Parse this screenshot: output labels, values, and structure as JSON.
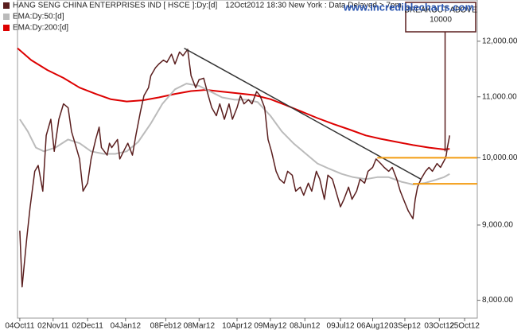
{
  "chart_data": {
    "type": "line",
    "title": "HANG SENG CHINA ENTERPRISES IND [ HSCE ]:Dy:[d]",
    "subtitle": "12Oct2012 18:30 New York : Data Delayed > 7pm",
    "watermark": "www.incrediblecharts.com",
    "log_scale": true,
    "grid": false,
    "legend": "top-left",
    "xlim": [
      "2011-10-02",
      "2012-11-05"
    ],
    "xticks": [
      {
        "value": "2011-10-04",
        "label": "04Oct11"
      },
      {
        "value": "2011-11-02",
        "label": "02Nov11"
      },
      {
        "value": "2011-12-02",
        "label": "02Dec11"
      },
      {
        "value": "2012-01-04",
        "label": "04Jan12"
      },
      {
        "value": "2012-02-08",
        "label": "08Feb12"
      },
      {
        "value": "2012-03-08",
        "label": "08Mar12"
      },
      {
        "value": "2012-04-10",
        "label": "10Apr12"
      },
      {
        "value": "2012-05-09",
        "label": "09May12"
      },
      {
        "value": "2012-06-08",
        "label": "08Jun12"
      },
      {
        "value": "2012-07-09",
        "label": "09Jul12"
      },
      {
        "value": "2012-08-06",
        "label": "06Aug12"
      },
      {
        "value": "2012-09-03",
        "label": "03Sep12"
      },
      {
        "value": "2012-10-03",
        "label": "03Oct12"
      },
      {
        "value": "2012-10-25",
        "label": "25Oct12"
      }
    ],
    "ylim": [
      7780,
      12800
    ],
    "yticks": [
      {
        "value": 8000,
        "label": "8,000.00"
      },
      {
        "value": 9000,
        "label": "9,000.00"
      },
      {
        "value": 10000,
        "label": "10,000.00"
      },
      {
        "value": 11000,
        "label": "11,000.00"
      },
      {
        "value": 12000,
        "label": "12,000.00"
      }
    ],
    "series": [
      {
        "name": "HANG SENG CHINA ENTERPRISES IND [ HSCE ]:Dy:[d]",
        "color": "#5a1e1e",
        "width": 1.5,
        "x": [
          "2011-10-04",
          "2011-10-06",
          "2011-10-10",
          "2011-10-13",
          "2011-10-17",
          "2011-10-20",
          "2011-10-24",
          "2011-10-27",
          "2011-10-31",
          "2011-11-03",
          "2011-11-07",
          "2011-11-11",
          "2011-11-15",
          "2011-11-18",
          "2011-11-21",
          "2011-11-25",
          "2011-11-28",
          "2011-12-02",
          "2011-12-05",
          "2011-12-09",
          "2011-12-12",
          "2011-12-14",
          "2011-12-19",
          "2011-12-21",
          "2011-12-23",
          "2011-12-28",
          "2011-12-30",
          "2012-01-04",
          "2012-01-06",
          "2012-01-10",
          "2012-01-13",
          "2012-01-17",
          "2012-01-20",
          "2012-01-24",
          "2012-01-26",
          "2012-01-30",
          "2012-02-02",
          "2012-02-06",
          "2012-02-09",
          "2012-02-13",
          "2012-02-16",
          "2012-02-20",
          "2012-02-23",
          "2012-02-27",
          "2012-03-01",
          "2012-03-05",
          "2012-03-08",
          "2012-03-12",
          "2012-03-16",
          "2012-03-19",
          "2012-03-23",
          "2012-03-26",
          "2012-03-30",
          "2012-04-03",
          "2012-04-06",
          "2012-04-10",
          "2012-04-13",
          "2012-04-16",
          "2012-04-20",
          "2012-04-23",
          "2012-04-27",
          "2012-04-30",
          "2012-05-04",
          "2012-05-07",
          "2012-05-10",
          "2012-05-14",
          "2012-05-17",
          "2012-05-21",
          "2012-05-24",
          "2012-05-28",
          "2012-05-31",
          "2012-06-04",
          "2012-06-07",
          "2012-06-11",
          "2012-06-14",
          "2012-06-18",
          "2012-06-21",
          "2012-06-25",
          "2012-06-28",
          "2012-07-02",
          "2012-07-05",
          "2012-07-09",
          "2012-07-12",
          "2012-07-16",
          "2012-07-19",
          "2012-07-23",
          "2012-07-26",
          "2012-07-30",
          "2012-08-02",
          "2012-08-06",
          "2012-08-09",
          "2012-08-13",
          "2012-08-16",
          "2012-08-20",
          "2012-08-23",
          "2012-08-27",
          "2012-08-30",
          "2012-09-03",
          "2012-09-06",
          "2012-09-10",
          "2012-09-12",
          "2012-09-14",
          "2012-09-17",
          "2012-09-21",
          "2012-09-24",
          "2012-09-27",
          "2012-10-01",
          "2012-10-04",
          "2012-10-08",
          "2012-10-09",
          "2012-10-10",
          "2012-10-12"
        ],
        "values": [
          8920,
          8170,
          8810,
          9260,
          9790,
          9880,
          9490,
          10355,
          10620,
          10100,
          10620,
          10880,
          10815,
          10420,
          10230,
          9980,
          9490,
          9610,
          9980,
          10290,
          10490,
          10160,
          10040,
          10230,
          10160,
          10290,
          9980,
          10160,
          10230,
          10040,
          10355,
          10750,
          11020,
          11160,
          11370,
          11510,
          11580,
          11650,
          11610,
          11760,
          11580,
          11800,
          11730,
          11850,
          11370,
          11160,
          11300,
          11325,
          11020,
          10815,
          10680,
          10880,
          10620,
          10880,
          10620,
          10815,
          11020,
          10880,
          10950,
          10880,
          11090,
          11020,
          10815,
          10290,
          10100,
          9790,
          9670,
          9610,
          9790,
          9730,
          9490,
          9550,
          9430,
          9610,
          9490,
          9790,
          9670,
          9370,
          9730,
          9670,
          9490,
          9260,
          9370,
          9550,
          9370,
          9490,
          9670,
          9610,
          9790,
          9850,
          9980,
          9910,
          9850,
          9790,
          9850,
          9670,
          9490,
          9320,
          9200,
          9090,
          9370,
          9550,
          9670,
          9790,
          9850,
          9790,
          9910,
          9850,
          9980,
          10040,
          10160,
          10355
        ]
      },
      {
        "name": "EMA:Dy:50:[d]",
        "color": "#bbbbbb",
        "width": 2,
        "x": [
          "2011-10-04",
          "2011-10-11",
          "2011-10-18",
          "2011-10-25",
          "2011-11-04",
          "2011-11-15",
          "2011-11-25",
          "2011-12-05",
          "2011-12-16",
          "2011-12-26",
          "2012-01-05",
          "2012-01-15",
          "2012-01-26",
          "2012-02-05",
          "2012-02-16",
          "2012-02-26",
          "2012-03-08",
          "2012-03-18",
          "2012-03-28",
          "2012-04-08",
          "2012-04-18",
          "2012-04-28",
          "2012-05-09",
          "2012-05-19",
          "2012-05-29",
          "2012-06-09",
          "2012-06-19",
          "2012-06-29",
          "2012-07-10",
          "2012-07-20",
          "2012-07-31",
          "2012-08-10",
          "2012-08-20",
          "2012-08-31",
          "2012-09-10",
          "2012-09-20",
          "2012-09-30",
          "2012-10-07",
          "2012-10-12"
        ],
        "values": [
          10620,
          10420,
          10160,
          10100,
          10160,
          10290,
          10230,
          10100,
          10060,
          10060,
          10100,
          10250,
          10550,
          10880,
          11130,
          11230,
          11190,
          11090,
          10990,
          10950,
          10950,
          10910,
          10680,
          10420,
          10230,
          10060,
          9910,
          9830,
          9750,
          9700,
          9670,
          9700,
          9700,
          9630,
          9590,
          9610,
          9660,
          9700,
          9750
        ]
      },
      {
        "name": "EMA:Dy:200:[d]",
        "color": "#dd0000",
        "width": 2,
        "x": [
          "2011-10-02",
          "2011-10-14",
          "2011-10-28",
          "2011-11-11",
          "2011-11-25",
          "2011-12-09",
          "2011-12-22",
          "2012-01-05",
          "2012-01-19",
          "2012-02-02",
          "2012-02-16",
          "2012-03-01",
          "2012-03-14",
          "2012-03-28",
          "2012-04-11",
          "2012-04-25",
          "2012-05-09",
          "2012-05-22",
          "2012-06-05",
          "2012-06-19",
          "2012-07-03",
          "2012-07-17",
          "2012-07-31",
          "2012-08-13",
          "2012-08-27",
          "2012-09-10",
          "2012-09-24",
          "2012-10-07",
          "2012-10-12"
        ],
        "values": [
          11870,
          11650,
          11470,
          11330,
          11160,
          11050,
          10960,
          10920,
          10940,
          10990,
          11050,
          11100,
          11120,
          11090,
          11060,
          11030,
          10960,
          10860,
          10750,
          10640,
          10540,
          10450,
          10355,
          10300,
          10250,
          10200,
          10160,
          10130,
          10140
        ]
      }
    ],
    "trendlines": [
      {
        "color": "#333333",
        "x": [
          "2012-02-24",
          "2012-09-17"
        ],
        "values": [
          11870,
          9670
        ]
      }
    ],
    "levels": [
      {
        "value": 10000,
        "from": "2012-08-10",
        "color": "#f39c12"
      },
      {
        "value": 9600,
        "from": "2012-09-10",
        "color": "#f39c12"
      }
    ],
    "annotations": [
      {
        "lines": [
          "BREAKOUT ABOVE",
          "10000"
        ],
        "x": "2012-10-08",
        "y": 10100,
        "color": "#5a1e1e"
      }
    ]
  }
}
